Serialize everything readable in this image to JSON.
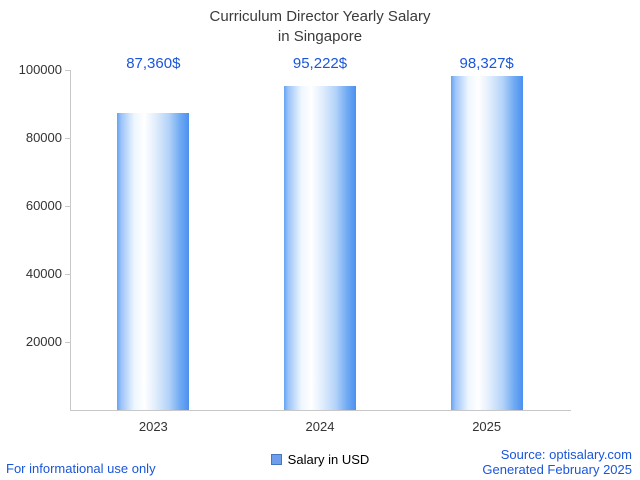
{
  "title": {
    "line1": "Curriculum Director Yearly Salary",
    "line2": "in Singapore"
  },
  "chart_data": {
    "type": "bar",
    "title": "Curriculum Director Yearly Salary in Singapore",
    "categories": [
      "2023",
      "2024",
      "2025"
    ],
    "values": [
      87360,
      95222,
      98327
    ],
    "value_labels": [
      "87,360$",
      "95,222$",
      "98,327$"
    ],
    "xlabel": "",
    "ylabel": "",
    "ylim": [
      0,
      100000
    ],
    "yticks": [
      20000,
      40000,
      60000,
      80000,
      100000
    ],
    "ytick_labels": [
      "20000",
      "40000",
      "60000",
      "80000",
      "100000"
    ],
    "grid": false,
    "legend_position": "bottom",
    "bar_color": "#4b90ef"
  },
  "legend": {
    "label": "Salary in USD",
    "swatch_color": "#6d9eea"
  },
  "footer": {
    "left": "For informational use only",
    "source": "Source: optisalary.com",
    "generated": "Generated February 2025"
  },
  "colors": {
    "value_label_blue": "#1a56db",
    "footer_blue": "#1a56db",
    "title_text": "#3b3b3b",
    "axis_line": "#c8c8c8"
  }
}
